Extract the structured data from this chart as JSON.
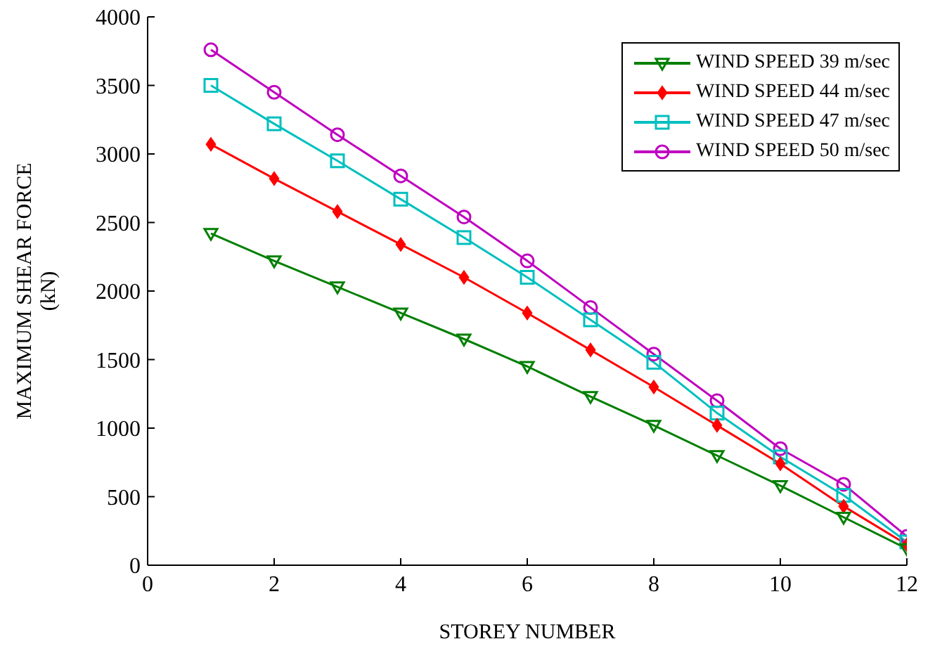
{
  "chart_data": {
    "type": "line",
    "xlabel": "STOREY NUMBER",
    "ylabel": "MAXIMUM SHEAR FORCE\n(kN)",
    "x": [
      1,
      2,
      3,
      4,
      5,
      6,
      7,
      8,
      9,
      10,
      11,
      12
    ],
    "xlim": [
      0,
      12
    ],
    "xticks": [
      0,
      2,
      4,
      6,
      8,
      10,
      12
    ],
    "ylim": [
      0,
      4000
    ],
    "yticks": [
      0,
      500,
      1000,
      1500,
      2000,
      2500,
      3000,
      3500,
      4000
    ],
    "grid": false,
    "legend": "top right",
    "series": [
      {
        "name": "WIND SPEED 39 m/sec",
        "color": "#007f00",
        "marker": "triangle",
        "values": [
          2420,
          2220,
          2030,
          1840,
          1650,
          1450,
          1230,
          1020,
          800,
          580,
          350,
          120
        ]
      },
      {
        "name": "WIND SPEED 44 m/sec",
        "color": "#ff0000",
        "marker": "diamond",
        "values": [
          3070,
          2820,
          2580,
          2340,
          2100,
          1840,
          1570,
          1300,
          1020,
          740,
          430,
          150
        ]
      },
      {
        "name": "WIND SPEED 47 m/sec",
        "color": "#00bfbf",
        "marker": "square",
        "values": [
          3500,
          3220,
          2950,
          2670,
          2390,
          2100,
          1790,
          1480,
          1110,
          790,
          510,
          170
        ]
      },
      {
        "name": "WIND SPEED 50 m/sec",
        "color": "#bf00bf",
        "marker": "circle",
        "values": [
          3760,
          3450,
          3140,
          2840,
          2540,
          2220,
          1880,
          1540,
          1200,
          850,
          590,
          210
        ]
      }
    ]
  }
}
